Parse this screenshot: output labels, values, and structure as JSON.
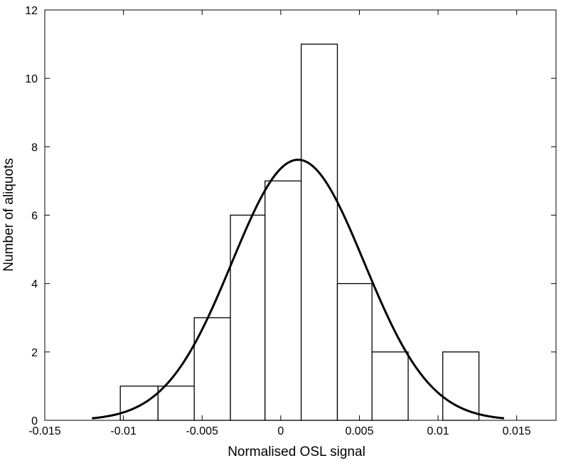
{
  "chart_data": {
    "type": "bar",
    "title": "",
    "xlabel": "Normalised OSL signal",
    "ylabel": "Number of aliquots",
    "xlim": [
      -0.015,
      0.0175
    ],
    "ylim": [
      0,
      12
    ],
    "xticks": [
      -0.015,
      -0.01,
      -0.005,
      0,
      0.005,
      0.01,
      0.015
    ],
    "xtick_labels": [
      "-0.015",
      "-0.01",
      "-0.005",
      "0",
      "0.005",
      "0.01",
      "0.015"
    ],
    "yticks": [
      0,
      2,
      4,
      6,
      8,
      10,
      12
    ],
    "ytick_labels": [
      "0",
      "2",
      "4",
      "6",
      "8",
      "10",
      "12"
    ],
    "bin_edges": [
      -0.0102,
      -0.0078,
      -0.0055,
      -0.0032,
      -0.001,
      0.0013,
      0.0036,
      0.0058,
      0.0081,
      0.0103,
      0.0126
    ],
    "values": [
      1,
      1,
      3,
      6,
      7,
      11,
      4,
      2,
      0,
      2
    ],
    "fit_curve": {
      "type": "gaussian",
      "peak": 7.62,
      "mean": 0.0011,
      "sigma": 0.0042,
      "x_range": [
        -0.012,
        0.0142
      ]
    },
    "grid": false,
    "legend": "none"
  }
}
